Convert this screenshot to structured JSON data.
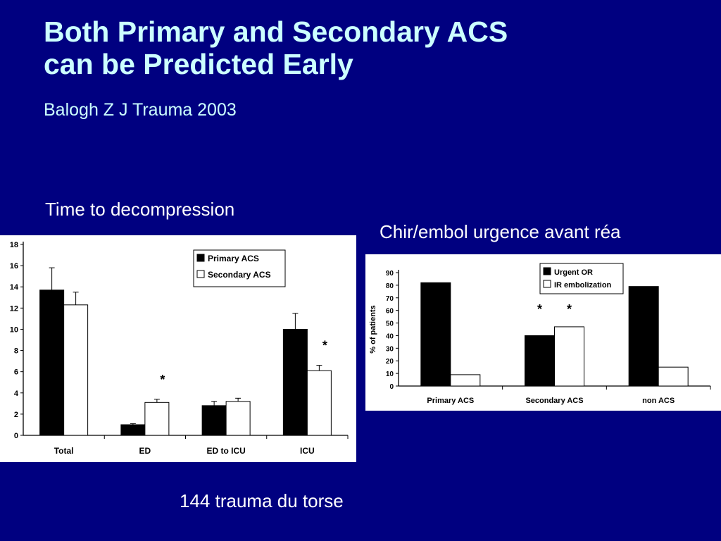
{
  "slide": {
    "title_line1": "Both Primary and Secondary ACS",
    "title_line2": "can be Predicted Early",
    "subtitle": "Balogh Z J Trauma 2003",
    "caption_left": "Time to decompression",
    "caption_right": "Chir/embol urgence avant réa",
    "caption_bottom": "144 trauma du torse",
    "colors": {
      "background": "#000080",
      "title": "#ccffff",
      "caption": "#ffffff"
    }
  },
  "chart_data": [
    {
      "type": "bar",
      "title": "",
      "xlabel": "",
      "ylabel": "",
      "ylim": [
        0,
        18
      ],
      "yticks": [
        0,
        2,
        4,
        6,
        8,
        10,
        12,
        14,
        16,
        18
      ],
      "categories": [
        "Total",
        "ED",
        "ED to ICU",
        "ICU"
      ],
      "series": [
        {
          "name": "Primary ACS",
          "color": "#000000",
          "values": [
            13.7,
            1.0,
            2.8,
            10.0
          ],
          "error": [
            2.1,
            0.1,
            0.4,
            1.5
          ]
        },
        {
          "name": "Secondary ACS",
          "color": "#ffffff",
          "values": [
            12.3,
            3.1,
            3.2,
            6.1
          ],
          "error": [
            1.2,
            0.3,
            0.3,
            0.5
          ]
        }
      ],
      "annotations": [
        {
          "category": "ED",
          "text": "*"
        },
        {
          "category": "ICU",
          "text": "*"
        }
      ],
      "legend": "top-right",
      "grid": false
    },
    {
      "type": "bar",
      "title": "",
      "xlabel": "",
      "ylabel": "% of patients",
      "ylim": [
        0,
        90
      ],
      "yticks": [
        0,
        10,
        20,
        30,
        40,
        50,
        60,
        70,
        80,
        90
      ],
      "categories": [
        "Primary ACS",
        "Secondary ACS",
        "non ACS"
      ],
      "series": [
        {
          "name": "Urgent OR",
          "color": "#000000",
          "values": [
            82,
            40,
            79
          ]
        },
        {
          "name": "IR embolization",
          "color": "#ffffff",
          "values": [
            9,
            47,
            15
          ]
        }
      ],
      "annotations": [
        {
          "category": "Secondary ACS",
          "series": 0,
          "text": "*"
        },
        {
          "category": "Secondary ACS",
          "series": 1,
          "text": "*"
        }
      ],
      "legend": "top-right",
      "grid": false
    }
  ]
}
